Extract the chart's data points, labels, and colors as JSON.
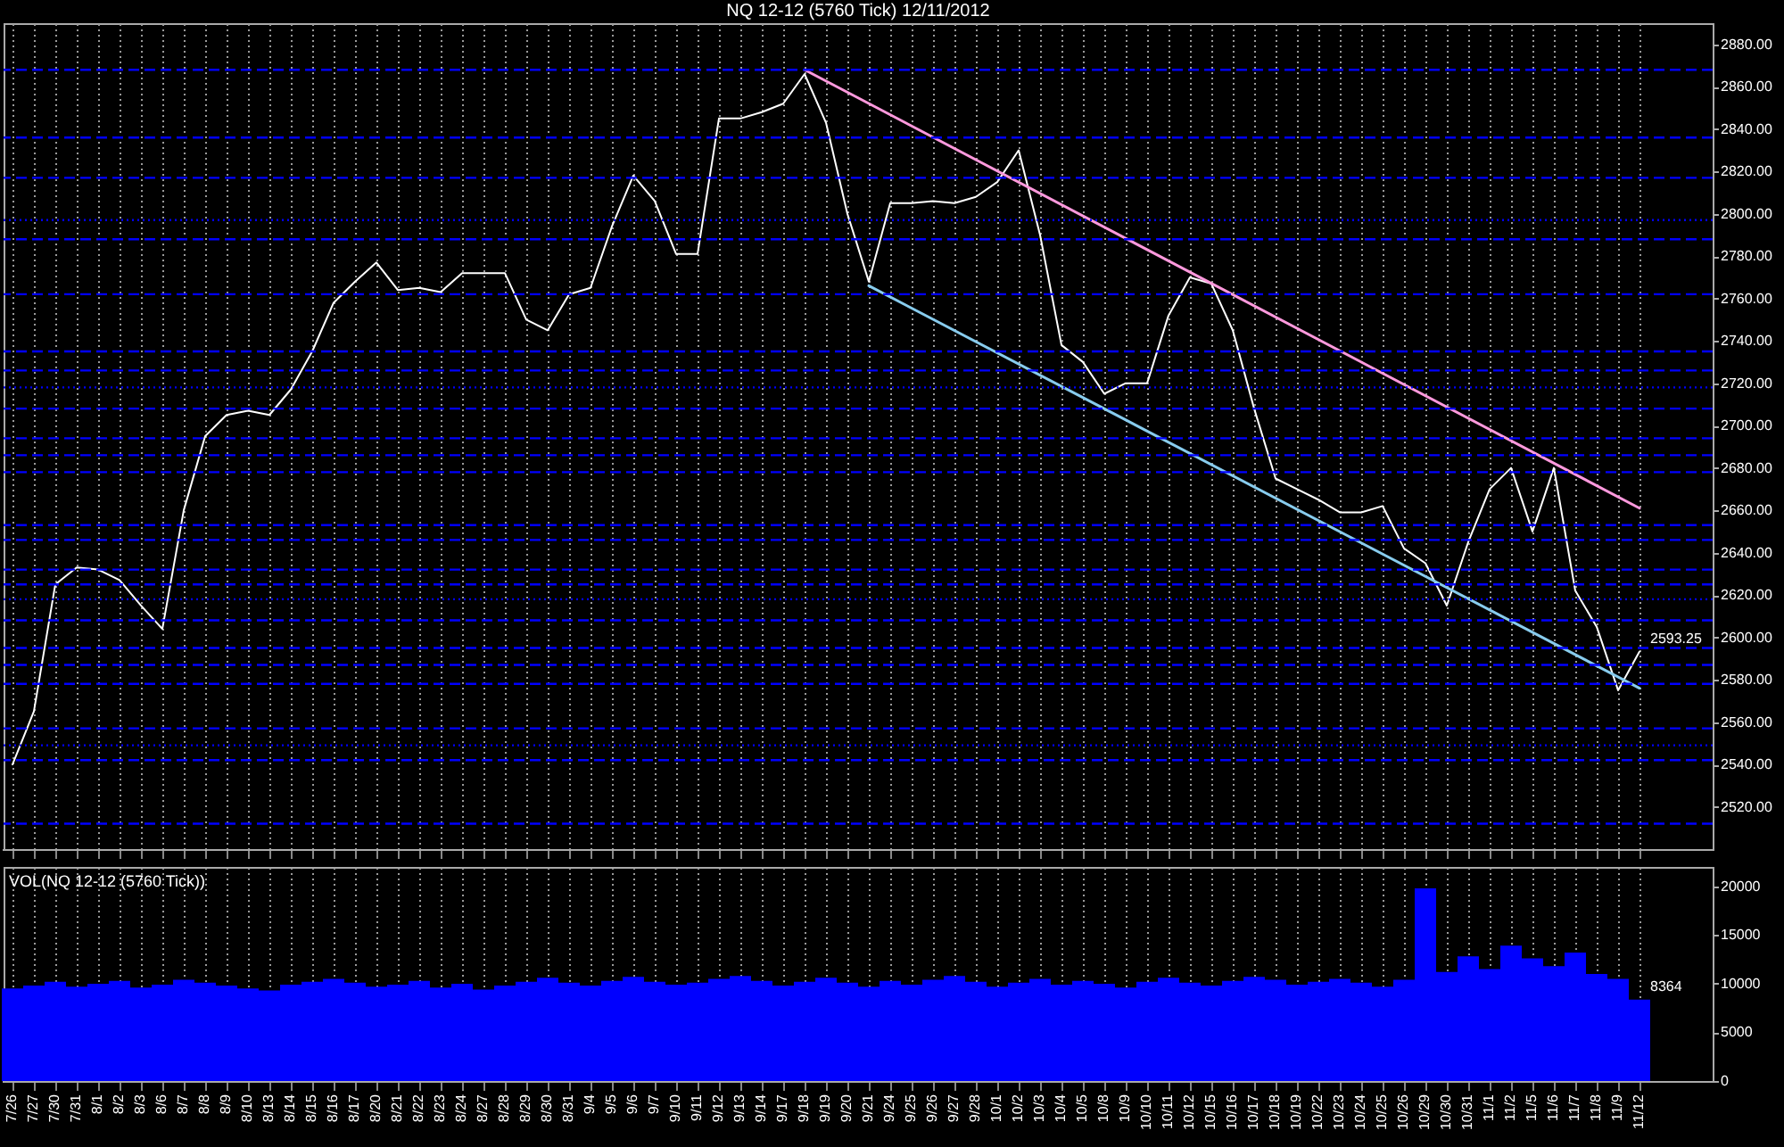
{
  "chart_data": [
    {
      "type": "line",
      "title": "NQ 12-12 (5760 Tick)  12/11/2012",
      "categories": [
        "7/26",
        "7/27",
        "7/30",
        "7/31",
        "8/1",
        "8/2",
        "8/3",
        "8/6",
        "8/7",
        "8/8",
        "8/9",
        "8/10",
        "8/13",
        "8/14",
        "8/15",
        "8/16",
        "8/17",
        "8/20",
        "8/21",
        "8/22",
        "8/23",
        "8/24",
        "8/27",
        "8/28",
        "8/29",
        "8/30",
        "8/31",
        "9/4",
        "9/5",
        "9/6",
        "9/7",
        "9/10",
        "9/11",
        "9/12",
        "9/13",
        "9/14",
        "9/17",
        "9/18",
        "9/19",
        "9/20",
        "9/21",
        "9/24",
        "9/25",
        "9/26",
        "9/27",
        "9/28",
        "10/1",
        "10/2",
        "10/3",
        "10/4",
        "10/5",
        "10/8",
        "10/9",
        "10/10",
        "10/11",
        "10/12",
        "10/15",
        "10/16",
        "10/17",
        "10/18",
        "10/19",
        "10/22",
        "10/23",
        "10/24",
        "10/25",
        "10/26",
        "10/29",
        "10/30",
        "10/31",
        "11/1",
        "11/2",
        "11/5",
        "11/6",
        "11/7",
        "11/8",
        "11/9",
        "11/12"
      ],
      "series": [
        {
          "color": "#ffffff",
          "values": [
            2540,
            2565,
            2625,
            2633,
            2632,
            2627,
            2615,
            2604,
            2660,
            2695,
            2705,
            2707,
            2705,
            2717,
            2735,
            2758,
            2768,
            2777,
            2764,
            2765,
            2763,
            2772,
            2772,
            2772,
            2750,
            2745,
            2762,
            2765,
            2794,
            2818,
            2806,
            2781,
            2781,
            2845,
            2845,
            2848,
            2852,
            2866,
            2843,
            2800,
            2768,
            2805,
            2805,
            2806,
            2805,
            2808,
            2815,
            2830,
            2790,
            2738,
            2730,
            2715,
            2720,
            2720,
            2752,
            2770,
            2767,
            2745,
            2708,
            2675,
            2670,
            2665,
            2659,
            2659,
            2662,
            2642,
            2635,
            2615,
            2645,
            2670,
            2680,
            2650,
            2680,
            2622,
            2605,
            2575,
            2593.25
          ]
        },
        {
          "type": "line",
          "color": "#ff99dd",
          "x": [
            "9/18",
            "11/12"
          ],
          "values": [
            2868,
            2661
          ]
        },
        {
          "type": "line",
          "color": "#88ccee",
          "x": [
            "9/21",
            "11/12"
          ],
          "values": [
            2766,
            2576
          ]
        }
      ],
      "ylim": [
        2500,
        2890
      ],
      "yticks": [
        {
          "value": 2520,
          "label": "2520.00"
        },
        {
          "value": 2540,
          "label": "2540.00"
        },
        {
          "value": 2560,
          "label": "2560.00"
        },
        {
          "value": 2580,
          "label": "2580.00"
        },
        {
          "value": 2600,
          "label": "2600.00"
        },
        {
          "value": 2620,
          "label": "2620.00"
        },
        {
          "value": 2640,
          "label": "2640.00"
        },
        {
          "value": 2660,
          "label": "2660.00"
        },
        {
          "value": 2680,
          "label": "2680.00"
        },
        {
          "value": 2700,
          "label": "2700.00"
        },
        {
          "value": 2720,
          "label": "2720.00"
        },
        {
          "value": 2740,
          "label": "2740.00"
        },
        {
          "value": 2760,
          "label": "2760.00"
        },
        {
          "value": 2780,
          "label": "2780.00"
        },
        {
          "value": 2800,
          "label": "2800.00"
        },
        {
          "value": 2820,
          "label": "2820.00"
        },
        {
          "value": 2840,
          "label": "2840.00"
        },
        {
          "value": 2860,
          "label": "2860.00"
        },
        {
          "value": 2880,
          "label": "2880.00"
        }
      ],
      "grid": "x",
      "tick_labels": "y",
      "ref_lines": [
        {
          "axis": "y",
          "value": 2868,
          "color": "#0000ff",
          "line_style": "dashed"
        },
        {
          "axis": "y",
          "value": 2836,
          "color": "#0000ff",
          "line_style": "dashed"
        },
        {
          "axis": "y",
          "value": 2817,
          "color": "#0000ff",
          "line_style": "dashed"
        },
        {
          "axis": "y",
          "value": 2797,
          "color": "#0000ff",
          "line_style": "dotted"
        },
        {
          "axis": "y",
          "value": 2788,
          "color": "#0000ff",
          "line_style": "dashed"
        },
        {
          "axis": "y",
          "value": 2762,
          "color": "#0000ff",
          "line_style": "dashed"
        },
        {
          "axis": "y",
          "value": 2735,
          "color": "#0000ff",
          "line_style": "dashed"
        },
        {
          "axis": "y",
          "value": 2726,
          "color": "#0000ff",
          "line_style": "dashed"
        },
        {
          "axis": "y",
          "value": 2718,
          "color": "#0000ff",
          "line_style": "dotted"
        },
        {
          "axis": "y",
          "value": 2708,
          "color": "#0000ff",
          "line_style": "dashed"
        },
        {
          "axis": "y",
          "value": 2694,
          "color": "#0000ff",
          "line_style": "dashed"
        },
        {
          "axis": "y",
          "value": 2686,
          "color": "#0000ff",
          "line_style": "dashed"
        },
        {
          "axis": "y",
          "value": 2678,
          "color": "#0000ff",
          "line_style": "dashed"
        },
        {
          "axis": "y",
          "value": 2653,
          "color": "#0000ff",
          "line_style": "dashed"
        },
        {
          "axis": "y",
          "value": 2646,
          "color": "#0000ff",
          "line_style": "dashed"
        },
        {
          "axis": "y",
          "value": 2632,
          "color": "#0000ff",
          "line_style": "dashed"
        },
        {
          "axis": "y",
          "value": 2625,
          "color": "#0000ff",
          "line_style": "dashed"
        },
        {
          "axis": "y",
          "value": 2618,
          "color": "#0000ff",
          "line_style": "dotted"
        },
        {
          "axis": "y",
          "value": 2608,
          "color": "#0000ff",
          "line_style": "dashed"
        },
        {
          "axis": "y",
          "value": 2595,
          "color": "#0000ff",
          "line_style": "dashed"
        },
        {
          "axis": "y",
          "value": 2587,
          "color": "#0000ff",
          "line_style": "dashed"
        },
        {
          "axis": "y",
          "value": 2578,
          "color": "#0000ff",
          "line_style": "dashed"
        },
        {
          "axis": "y",
          "value": 2557,
          "color": "#0000ff",
          "line_style": "dashed"
        },
        {
          "axis": "y",
          "value": 2549,
          "color": "#0000ff",
          "line_style": "dotted"
        },
        {
          "axis": "y",
          "value": 2542,
          "color": "#0000ff",
          "line_style": "dashed"
        },
        {
          "axis": "y",
          "value": 2512,
          "color": "#0000ff",
          "line_style": "dashed"
        }
      ],
      "annotations": [
        {
          "text": "2593.25",
          "x": "11/12",
          "y": 2593.25
        }
      ]
    },
    {
      "type": "bar",
      "title": "VOL(NQ 12-12 (5760 Tick))",
      "categories": [
        "7/26",
        "7/27",
        "7/30",
        "7/31",
        "8/1",
        "8/2",
        "8/3",
        "8/6",
        "8/7",
        "8/8",
        "8/9",
        "8/10",
        "8/13",
        "8/14",
        "8/15",
        "8/16",
        "8/17",
        "8/20",
        "8/21",
        "8/22",
        "8/23",
        "8/24",
        "8/27",
        "8/28",
        "8/29",
        "8/30",
        "8/31",
        "9/4",
        "9/5",
        "9/6",
        "9/7",
        "9/10",
        "9/11",
        "9/12",
        "9/13",
        "9/14",
        "9/17",
        "9/18",
        "9/19",
        "9/20",
        "9/21",
        "9/24",
        "9/25",
        "9/26",
        "9/27",
        "9/28",
        "10/1",
        "10/2",
        "10/3",
        "10/4",
        "10/5",
        "10/8",
        "10/9",
        "10/10",
        "10/11",
        "10/12",
        "10/15",
        "10/16",
        "10/17",
        "10/18",
        "10/19",
        "10/22",
        "10/23",
        "10/24",
        "10/25",
        "10/26",
        "10/29",
        "10/30",
        "10/31",
        "11/1",
        "11/2",
        "11/5",
        "11/6",
        "11/7",
        "11/8",
        "11/9",
        "11/12"
      ],
      "values": [
        9500,
        9800,
        10200,
        9700,
        10000,
        10300,
        9600,
        9900,
        10400,
        10100,
        9800,
        9500,
        9300,
        9900,
        10200,
        10500,
        10100,
        9700,
        9900,
        10300,
        9600,
        10000,
        9400,
        9800,
        10200,
        10600,
        10100,
        9800,
        10300,
        10700,
        10200,
        9900,
        10100,
        10500,
        10800,
        10300,
        9800,
        10200,
        10600,
        10100,
        9700,
        10300,
        9900,
        10400,
        10800,
        10200,
        9700,
        10100,
        10500,
        9900,
        10300,
        10000,
        9600,
        10200,
        10600,
        10100,
        9800,
        10300,
        10700,
        10400,
        9900,
        10200,
        10500,
        10100,
        9700,
        10400,
        19800,
        11200,
        12800,
        11500,
        13900,
        12600,
        11800,
        13200,
        11000,
        10500,
        8364
      ],
      "color": "#0000ff",
      "ylim": [
        0,
        22000
      ],
      "yticks": [
        0,
        5000,
        10000,
        15000,
        20000
      ],
      "grid": "x",
      "annotations": [
        {
          "text": "8364",
          "x": "11/12",
          "y": 8364
        }
      ]
    }
  ]
}
